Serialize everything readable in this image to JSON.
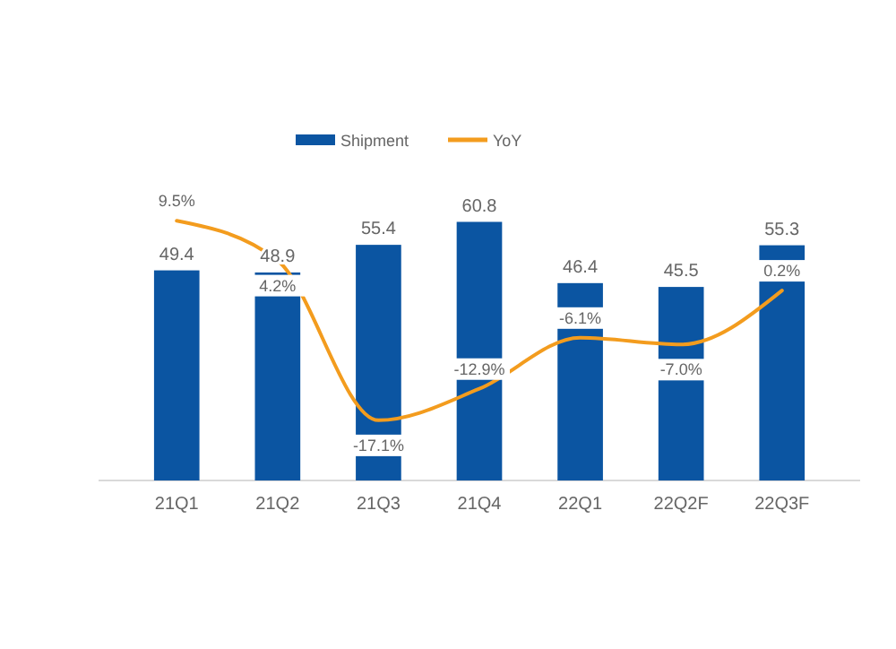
{
  "chart_data": {
    "type": "bar",
    "categories": [
      "21Q1",
      "21Q2",
      "21Q3",
      "21Q4",
      "22Q1",
      "22Q2F",
      "22Q3F"
    ],
    "legend": "top",
    "data_labels": true,
    "series": [
      {
        "name": "Shipment",
        "color": "#0b55a2",
        "values": [
          49.4,
          48.9,
          55.4,
          60.8,
          46.4,
          45.5,
          55.3
        ]
      },
      {
        "name": "YoY",
        "type": "line",
        "axis": "y2",
        "marker": "none",
        "color": "#f39c1e",
        "values": [
          9.5,
          4.2,
          -17.1,
          -12.9,
          -6.1,
          -7.0,
          0.2
        ],
        "value_labels": [
          "9.5%",
          "4.2%",
          "-17.1%",
          "-12.9%",
          "-6.1%",
          "-7.0%",
          "0.2%"
        ]
      }
    ]
  }
}
